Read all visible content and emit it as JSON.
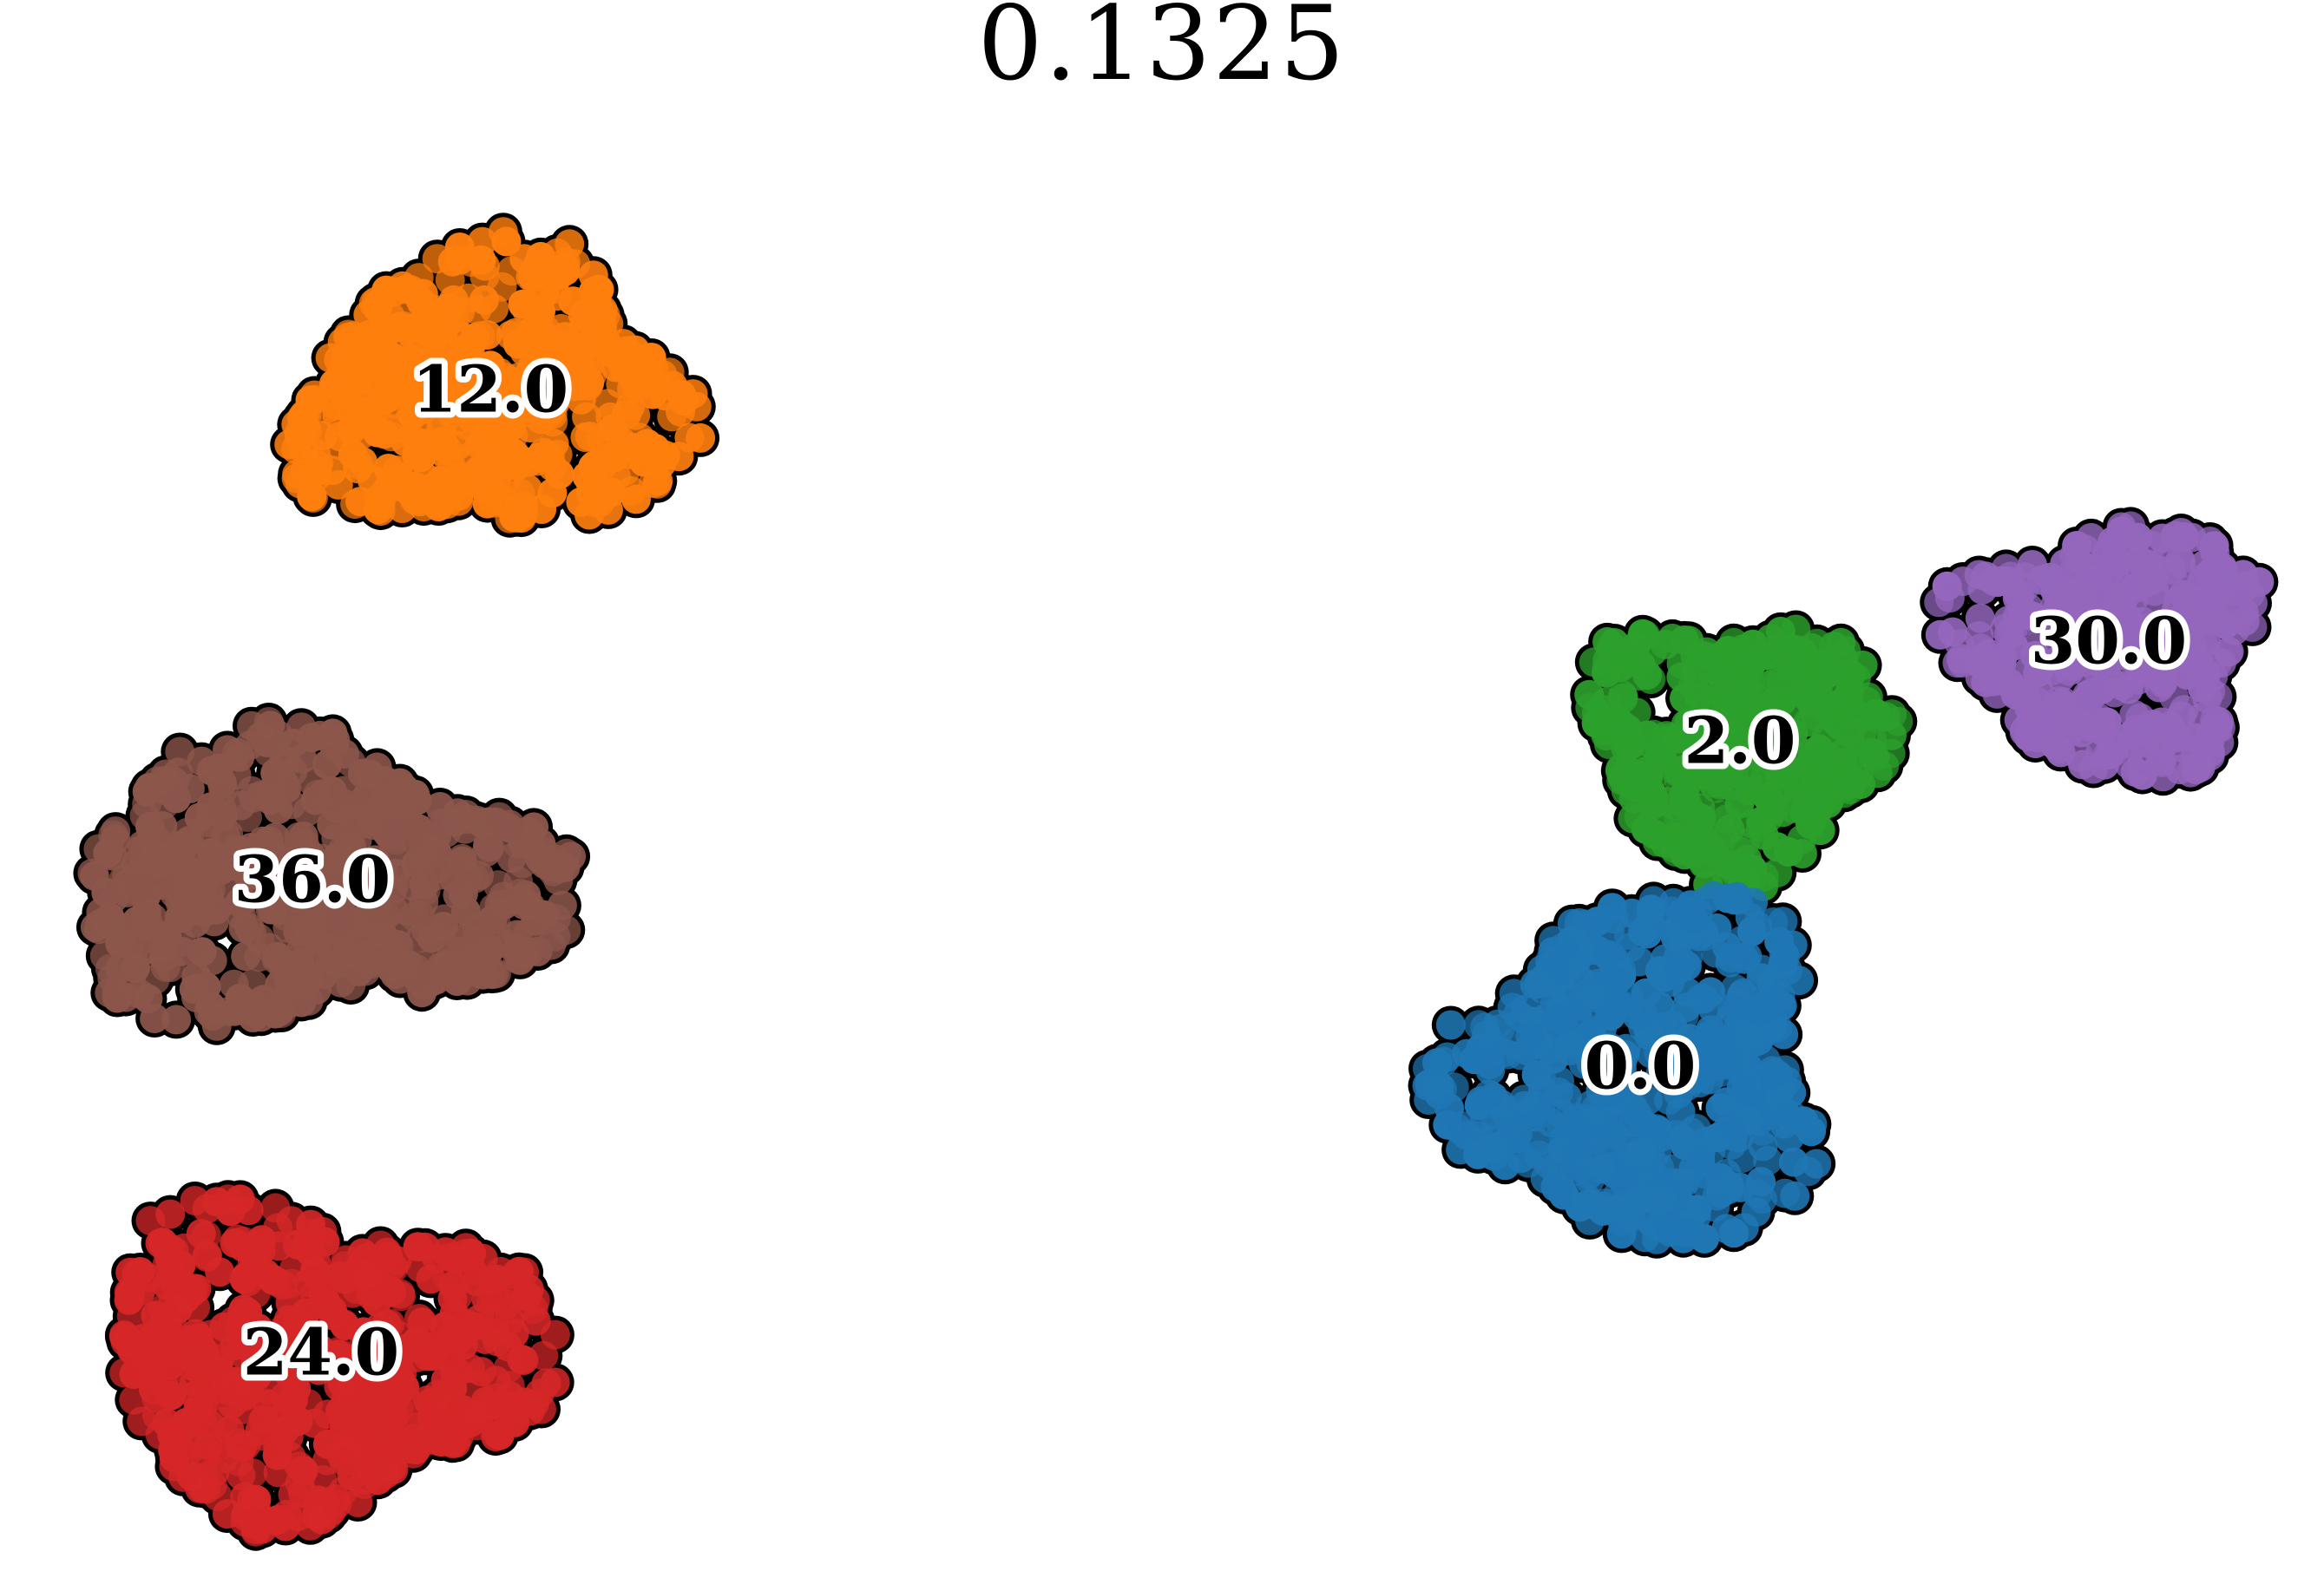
{
  "chart_data": {
    "type": "scatter",
    "title": "0.1325",
    "xlabel": "",
    "ylabel": "",
    "axes_visible": false,
    "grid": false,
    "legend": "none",
    "point_outline_color": "#000000",
    "clusters": [
      {
        "label": "12.0",
        "color": "#ff7f0e",
        "center": [
          565,
          455
        ],
        "spread": [
          260,
          190
        ],
        "count": 520
      },
      {
        "label": "36.0",
        "color": "#8c564b",
        "center": [
          360,
          1020
        ],
        "spread": [
          330,
          185
        ],
        "count": 560
      },
      {
        "label": "24.0",
        "color": "#d62728",
        "center": [
          370,
          1565
        ],
        "spread": [
          300,
          200
        ],
        "count": 560
      },
      {
        "label": "2.0",
        "color": "#2ca02c",
        "center": [
          2005,
          860
        ],
        "spread": [
          195,
          175
        ],
        "count": 380
      },
      {
        "label": "30.0",
        "color": "#9467bd",
        "center": [
          2430,
          745
        ],
        "spread": [
          200,
          165
        ],
        "count": 360
      },
      {
        "label": "0.0",
        "color": "#1f77b4",
        "center": [
          1890,
          1235
        ],
        "spread": [
          250,
          230
        ],
        "count": 560
      }
    ]
  }
}
